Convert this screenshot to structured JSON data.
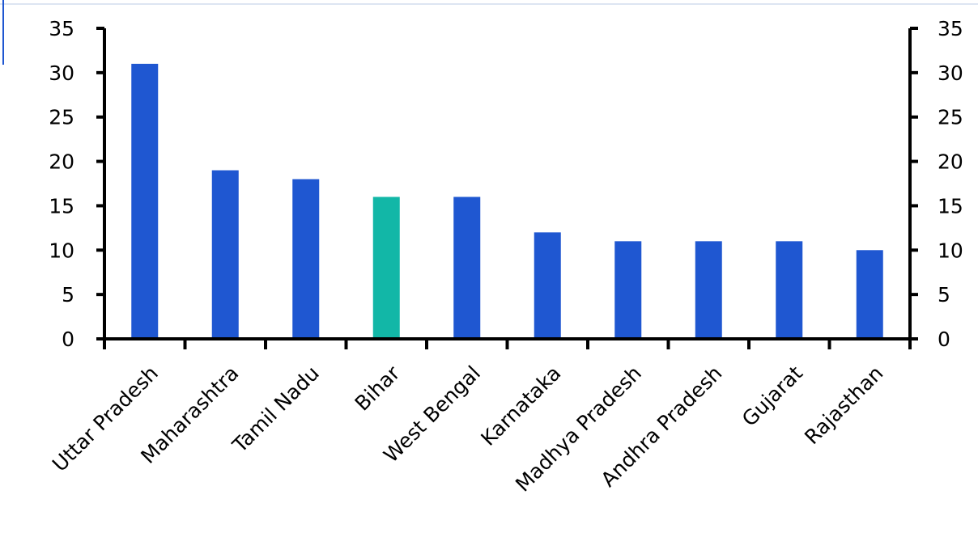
{
  "chart_data": {
    "type": "bar",
    "title": "",
    "xlabel": "",
    "ylabel": "",
    "categories": [
      "Uttar Pradesh",
      "Maharashtra",
      "Tamil Nadu",
      "Bihar",
      "West Bengal",
      "Karnataka",
      "Madhya Pradesh",
      "Andhra Pradesh",
      "Gujarat",
      "Rajasthan"
    ],
    "values": [
      31,
      19,
      18,
      16,
      16,
      12,
      11,
      11,
      11,
      10
    ],
    "highlight_category": "Bihar",
    "ylim": [
      0,
      35
    ],
    "yticks": [
      0,
      5,
      10,
      15,
      20,
      25,
      30,
      35
    ],
    "ytick_labels": [
      "0",
      "5",
      "10",
      "15",
      "20",
      "25",
      "30",
      "35"
    ],
    "dual_y_axis": true,
    "grid": false,
    "legend": "none",
    "colors": {
      "bar": "#1f57d1",
      "highlight": "#12b7a7",
      "axis": "#000000",
      "frame": "#dde5f2",
      "frame_accent": "#1f57d1"
    }
  }
}
